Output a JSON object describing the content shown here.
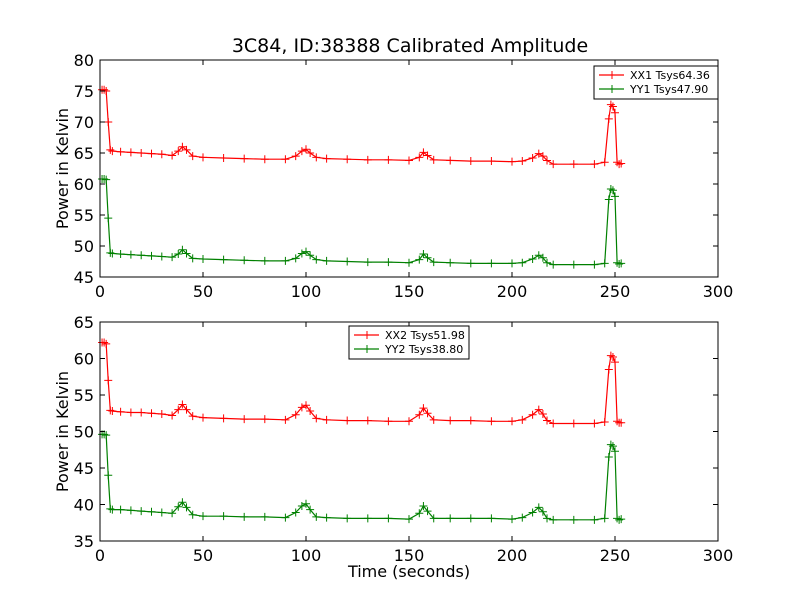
{
  "title": "3C84, ID:38388 Calibrated Amplitude",
  "chart_data": [
    {
      "type": "line",
      "title": "3C84, ID:38388 Calibrated Amplitude",
      "xlabel": "",
      "ylabel": "Power in Kelvin",
      "xlim": [
        0,
        300
      ],
      "ylim": [
        45,
        80
      ],
      "xticks": [
        "0",
        "50",
        "100",
        "150",
        "200",
        "250",
        "300"
      ],
      "yticks": [
        "45",
        "50",
        "55",
        "60",
        "65",
        "70",
        "75",
        "80"
      ],
      "grid": false,
      "legend": "top-right",
      "series": [
        {
          "name": "XX1 Tsys64.36",
          "color": "#ff0000",
          "marker": "+",
          "x": [
            1,
            2,
            3,
            4,
            5,
            6,
            10,
            15,
            20,
            25,
            30,
            35,
            38,
            40,
            42,
            45,
            50,
            60,
            70,
            80,
            90,
            95,
            98,
            100,
            102,
            105,
            110,
            120,
            130,
            140,
            150,
            155,
            157,
            159,
            162,
            170,
            180,
            190,
            200,
            205,
            210,
            213,
            215,
            217,
            220,
            230,
            240,
            245,
            247,
            248,
            249,
            250,
            251,
            252,
            253
          ],
          "y": [
            75.2,
            75.2,
            75.0,
            70.0,
            65.5,
            65.3,
            65.2,
            65.1,
            65.0,
            64.9,
            64.8,
            64.6,
            65.3,
            66.0,
            65.5,
            64.5,
            64.3,
            64.2,
            64.1,
            64.0,
            64.0,
            64.5,
            65.3,
            65.6,
            65.0,
            64.3,
            64.1,
            64.0,
            63.9,
            63.9,
            63.8,
            64.3,
            65.1,
            64.6,
            63.9,
            63.8,
            63.7,
            63.7,
            63.6,
            63.7,
            64.2,
            64.9,
            64.5,
            63.8,
            63.2,
            63.2,
            63.2,
            63.5,
            70.5,
            72.8,
            72.5,
            71.5,
            63.5,
            63.2,
            63.3
          ]
        },
        {
          "name": "YY1 Tsys47.90",
          "color": "#008000",
          "marker": "+",
          "x": [
            1,
            2,
            3,
            4,
            5,
            6,
            10,
            15,
            20,
            25,
            30,
            35,
            38,
            40,
            42,
            45,
            50,
            60,
            70,
            80,
            90,
            95,
            98,
            100,
            102,
            105,
            110,
            120,
            130,
            140,
            150,
            155,
            157,
            159,
            162,
            170,
            180,
            190,
            200,
            205,
            210,
            213,
            215,
            217,
            220,
            230,
            240,
            245,
            247,
            248,
            249,
            250,
            251,
            252,
            253
          ],
          "y": [
            60.8,
            60.8,
            60.7,
            54.5,
            48.9,
            48.8,
            48.7,
            48.6,
            48.5,
            48.4,
            48.3,
            48.2,
            48.7,
            49.4,
            48.8,
            48.0,
            47.9,
            47.8,
            47.7,
            47.6,
            47.6,
            48.0,
            48.8,
            49.1,
            48.5,
            47.8,
            47.6,
            47.5,
            47.4,
            47.4,
            47.3,
            47.8,
            48.7,
            48.1,
            47.4,
            47.3,
            47.2,
            47.2,
            47.2,
            47.3,
            47.9,
            48.5,
            48.1,
            47.3,
            47.0,
            47.0,
            47.0,
            47.2,
            57.5,
            59.2,
            59.0,
            58.0,
            47.3,
            47.1,
            47.2
          ]
        }
      ]
    },
    {
      "type": "line",
      "title": "",
      "xlabel": "Time (seconds)",
      "ylabel": "Power in Kelvin",
      "xlim": [
        0,
        300
      ],
      "ylim": [
        35,
        65
      ],
      "xticks": [
        "0",
        "50",
        "100",
        "150",
        "200",
        "250",
        "300"
      ],
      "yticks": [
        "35",
        "40",
        "45",
        "50",
        "55",
        "60",
        "65"
      ],
      "grid": false,
      "legend": "top-center",
      "series": [
        {
          "name": "XX2 Tsys51.98",
          "color": "#ff0000",
          "marker": "+",
          "x": [
            1,
            2,
            3,
            4,
            5,
            6,
            10,
            15,
            20,
            25,
            30,
            35,
            38,
            40,
            42,
            45,
            50,
            60,
            70,
            80,
            90,
            95,
            98,
            100,
            102,
            105,
            110,
            120,
            130,
            140,
            150,
            155,
            157,
            159,
            162,
            170,
            180,
            190,
            200,
            205,
            210,
            213,
            215,
            217,
            220,
            230,
            240,
            245,
            247,
            248,
            249,
            250,
            251,
            252,
            253
          ],
          "y": [
            62.2,
            62.2,
            62.0,
            57.0,
            52.9,
            52.8,
            52.7,
            52.6,
            52.6,
            52.5,
            52.4,
            52.2,
            53.0,
            53.7,
            53.0,
            52.1,
            51.9,
            51.8,
            51.7,
            51.7,
            51.6,
            52.3,
            53.3,
            53.6,
            52.8,
            51.8,
            51.6,
            51.5,
            51.5,
            51.4,
            51.4,
            52.3,
            53.2,
            52.5,
            51.6,
            51.5,
            51.5,
            51.4,
            51.4,
            51.6,
            52.3,
            53.0,
            52.4,
            51.5,
            51.1,
            51.1,
            51.1,
            51.3,
            58.5,
            60.4,
            60.2,
            59.5,
            51.4,
            51.2,
            51.2
          ]
        },
        {
          "name": "YY2 Tsys38.80",
          "color": "#008000",
          "marker": "+",
          "x": [
            1,
            2,
            3,
            4,
            5,
            6,
            10,
            15,
            20,
            25,
            30,
            35,
            38,
            40,
            42,
            45,
            50,
            60,
            70,
            80,
            90,
            95,
            98,
            100,
            102,
            105,
            110,
            120,
            130,
            140,
            150,
            155,
            157,
            159,
            162,
            170,
            180,
            190,
            200,
            205,
            210,
            213,
            215,
            217,
            220,
            230,
            240,
            245,
            247,
            248,
            249,
            250,
            251,
            252,
            253
          ],
          "y": [
            49.6,
            49.6,
            49.5,
            44.0,
            39.4,
            39.3,
            39.3,
            39.2,
            39.1,
            39.0,
            38.9,
            38.8,
            39.7,
            40.3,
            39.6,
            38.6,
            38.4,
            38.4,
            38.3,
            38.3,
            38.2,
            38.9,
            39.8,
            40.1,
            39.3,
            38.3,
            38.2,
            38.1,
            38.1,
            38.1,
            38.0,
            38.8,
            39.8,
            39.1,
            38.1,
            38.1,
            38.1,
            38.1,
            38.0,
            38.2,
            38.9,
            39.6,
            39.0,
            38.1,
            37.9,
            37.9,
            37.9,
            38.1,
            46.5,
            48.2,
            48.0,
            47.3,
            38.1,
            37.9,
            38.0
          ]
        }
      ]
    }
  ]
}
